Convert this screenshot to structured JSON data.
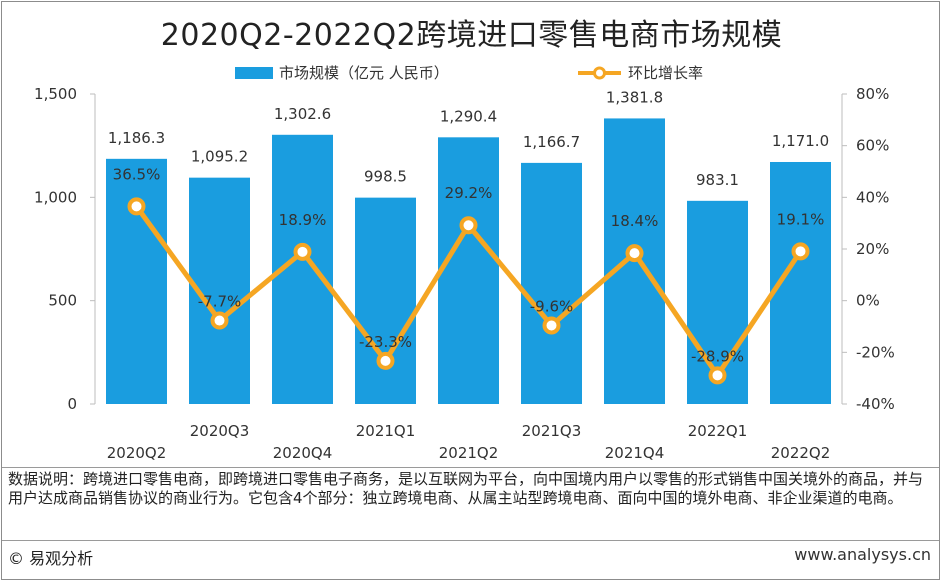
{
  "title": "2020Q2-2022Q2跨境进口零售电商市场规模",
  "note": "数据说明：跨境进口零售电商，即跨境进口零售电子商务，是以互联网为平台，向中国境内用户以零售的形式销售中国关境外的商品，并与用户达成商品销售协议的商业行为。它包含4个部分：独立跨境电商、从属主站型跨境电商、面向中国的境外电商、非企业渠道的电商。",
  "footer": {
    "copyright": "© 易观分析",
    "url": "www.analysys.cn"
  },
  "colors": {
    "bar": "#1a9ddf",
    "line": "#f5a623",
    "marker_fill": "#ffffff"
  },
  "chart_data": {
    "type": "bar+line",
    "title": "2020Q2-2022Q2跨境进口零售电商市场规模",
    "categories": [
      "2020Q2",
      "2020Q3",
      "2020Q4",
      "2021Q1",
      "2021Q2",
      "2021Q3",
      "2021Q4",
      "2022Q1",
      "2022Q2"
    ],
    "series": [
      {
        "name": "市场规模（亿元 人民币）",
        "type": "bar",
        "axis": "left",
        "values": [
          1186.3,
          1095.2,
          1302.6,
          998.5,
          1290.4,
          1166.7,
          1381.8,
          983.1,
          1171.0
        ],
        "labels": [
          "1,186.3",
          "1,095.2",
          "1,302.6",
          "998.5",
          "1,290.4",
          "1,166.7",
          "1,381.8",
          "983.1",
          "1,171.0"
        ]
      },
      {
        "name": "环比增长率",
        "type": "line",
        "axis": "right",
        "values": [
          36.5,
          -7.7,
          18.9,
          -23.3,
          29.2,
          -9.6,
          18.4,
          -28.9,
          19.1
        ],
        "labels": [
          "36.5%",
          "-7.7%",
          "18.9%",
          "-23.3%",
          "29.2%",
          "-9.6%",
          "18.4%",
          "-28.9%",
          "19.1%"
        ]
      }
    ],
    "y_left": {
      "min": 0,
      "max": 1500,
      "ticks": [
        0,
        500,
        1000,
        1500
      ],
      "tick_labels": [
        "0",
        "500",
        "1,000",
        "1,500"
      ]
    },
    "y_right": {
      "min": -40,
      "max": 80,
      "ticks": [
        -40,
        -20,
        0,
        20,
        40,
        60,
        80
      ],
      "tick_labels": [
        "-40%",
        "-20%",
        "0%",
        "20%",
        "40%",
        "60%",
        "80%"
      ]
    },
    "legend_position": "top",
    "grid": false
  }
}
